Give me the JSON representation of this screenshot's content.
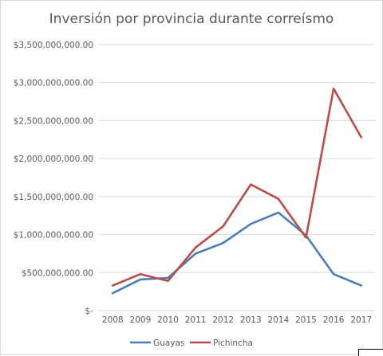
{
  "chart_data": {
    "type": "line",
    "title": "Inversión por provincia durante correísmo",
    "xlabel": "",
    "ylabel": "",
    "categories": [
      "2008",
      "2009",
      "2010",
      "2011",
      "2012",
      "2013",
      "2014",
      "2015",
      "2016",
      "2017"
    ],
    "ylim": [
      0,
      3500000000
    ],
    "yticks": [
      {
        "value": 0,
        "label": "$-"
      },
      {
        "value": 500000000,
        "label": "$500,000,000.00"
      },
      {
        "value": 1000000000,
        "label": "$1,000,000,000.00"
      },
      {
        "value": 1500000000,
        "label": "$1,500,000,000.00"
      },
      {
        "value": 2000000000,
        "label": "$2,000,000,000.00"
      },
      {
        "value": 2500000000,
        "label": "$2,500,000,000.00"
      },
      {
        "value": 3000000000,
        "label": "$3,000,000,000.00"
      },
      {
        "value": 3500000000,
        "label": "$3,500,000,000.00"
      }
    ],
    "grid": true,
    "legend": "bottom",
    "series": [
      {
        "name": "Guayas",
        "color": "#4a7ebb",
        "values": [
          230000000,
          410000000,
          430000000,
          750000000,
          890000000,
          1140000000,
          1290000000,
          990000000,
          480000000,
          330000000
        ]
      },
      {
        "name": "Pichincha",
        "color": "#be4b48",
        "values": [
          330000000,
          480000000,
          390000000,
          830000000,
          1110000000,
          1660000000,
          1470000000,
          960000000,
          2920000000,
          2280000000
        ]
      }
    ]
  }
}
